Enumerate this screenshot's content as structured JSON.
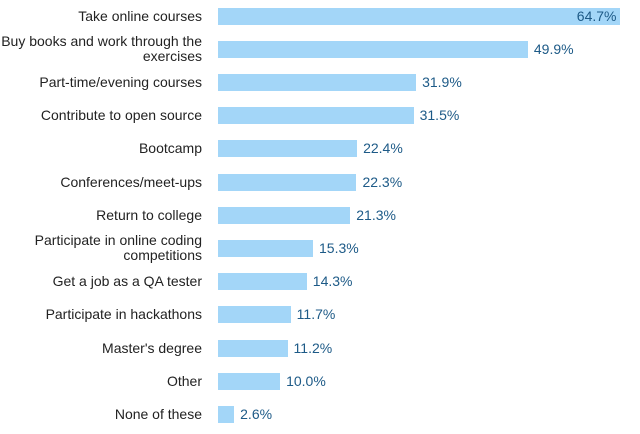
{
  "chart_data": {
    "type": "bar",
    "orientation": "horizontal",
    "color": "#a3d6f8",
    "categories": [
      "Take online courses",
      "Buy books and work through the exercises",
      "Part-time/evening courses",
      "Contribute to open source",
      "Bootcamp",
      "Conferences/meet-ups",
      "Return to college",
      "Participate in online coding competitions",
      "Get a job as a QA tester",
      "Participate in hackathons",
      "Master's degree",
      "Other",
      "None of these"
    ],
    "values": [
      64.7,
      49.9,
      31.9,
      31.5,
      22.4,
      22.3,
      21.3,
      15.3,
      14.3,
      11.7,
      11.2,
      10.0,
      2.6
    ],
    "value_labels": [
      "64.7%",
      "49.9%",
      "31.9%",
      "31.5%",
      "22.4%",
      "22.3%",
      "21.3%",
      "15.3%",
      "14.3%",
      "11.7%",
      "11.2%",
      "10.0%",
      "2.6%"
    ]
  }
}
